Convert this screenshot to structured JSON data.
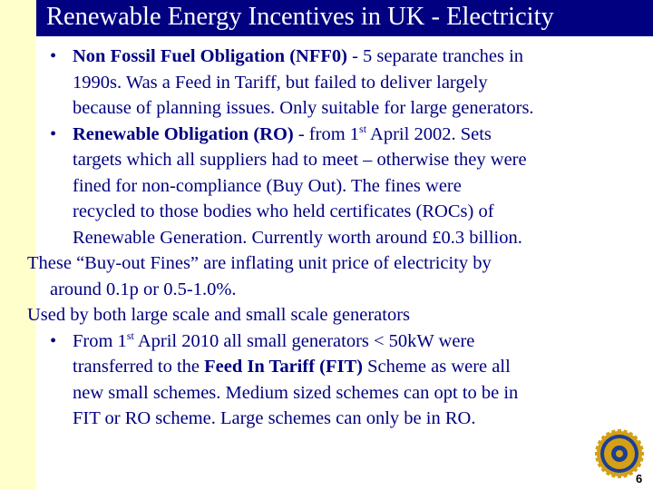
{
  "slide": {
    "title": "Renewable Energy Incentives in UK - Electricity",
    "page_number": "6",
    "bullet1": {
      "bold_lead": "Non Fossil Fuel Obligation (NFF0)",
      "l1_rest": " -  5 separate tranches in",
      "l2": "1990s.   Was a Feed in Tariff, but failed to deliver largely",
      "l3": "because of planning issues.   Only suitable for large generators."
    },
    "bullet2": {
      "bold_lead": "Renewable Obligation (RO)",
      "l1_mid": " - from 1",
      "l1_sup": "st",
      "l1_end": " April 2002.   Sets",
      "l2": "targets which all suppliers had to meet – otherwise they were",
      "l3": "fined for non-compliance (Buy Out).     The fines were",
      "l4": "recycled to those bodies who held certificates (ROCs) of",
      "l5": "Renewable Generation.    Currently worth around £0.3 billion."
    },
    "para1": {
      "l1": "These “Buy-out Fines” are inflating unit price of electricity by",
      "l2": "around 0.1p  or 0.5-1.0%."
    },
    "para2": {
      "l1": "Used by both large scale and small scale generators"
    },
    "bullet3": {
      "l1_start": "From 1",
      "l1_sup": "st",
      "l1_end": " April 2010 all small generators < 50kW were",
      "l2_start": "transferred to the ",
      "l2_bold": "Feed In Tariff (FIT)",
      "l2_end": " Scheme as were all",
      "l3": "new small schemes.    Medium sized schemes can opt to be in",
      "l4": "FIT or RO scheme.   Large schemes can only be in RO."
    },
    "colors": {
      "title_bar": "#000080",
      "text": "#000080",
      "side_bar": "#ffffcc",
      "logo_gold": "#d4a017",
      "logo_blue": "#1c3f94"
    },
    "logo_icon": "rotary-emblem-icon"
  }
}
